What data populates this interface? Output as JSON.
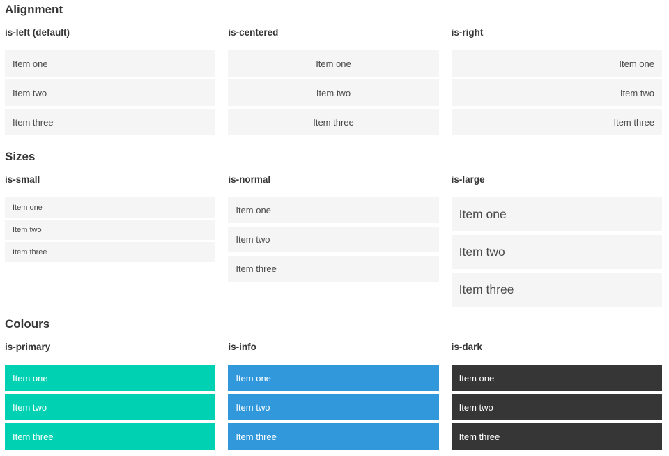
{
  "sections": [
    {
      "title": "Alignment",
      "columns": [
        {
          "label": "is-left (default)",
          "items": [
            "Item one",
            "Item two",
            "Item three"
          ]
        },
        {
          "label": "is-centered",
          "items": [
            "Item one",
            "Item two",
            "Item three"
          ]
        },
        {
          "label": "is-right",
          "items": [
            "Item one",
            "Item two",
            "Item three"
          ]
        }
      ]
    },
    {
      "title": "Sizes",
      "columns": [
        {
          "label": "is-small",
          "items": [
            "Item one",
            "Item two",
            "Item three"
          ]
        },
        {
          "label": "is-normal",
          "items": [
            "Item one",
            "Item two",
            "Item three"
          ]
        },
        {
          "label": "is-large",
          "items": [
            "Item one",
            "Item two",
            "Item three"
          ]
        }
      ]
    },
    {
      "title": "Colours",
      "columns": [
        {
          "label": "is-primary",
          "items": [
            "Item one",
            "Item two",
            "Item three"
          ]
        },
        {
          "label": "is-info",
          "items": [
            "Item one",
            "Item two",
            "Item three"
          ]
        },
        {
          "label": "is-dark",
          "items": [
            "Item one",
            "Item two",
            "Item three"
          ]
        }
      ]
    }
  ],
  "colors": {
    "primary": "#00d1b2",
    "info": "#3298dc",
    "dark": "#363636",
    "item_background": "#f5f5f5",
    "item_text": "#4a4a4a",
    "heading_text": "#363636",
    "colored_item_text": "#ffffff"
  }
}
